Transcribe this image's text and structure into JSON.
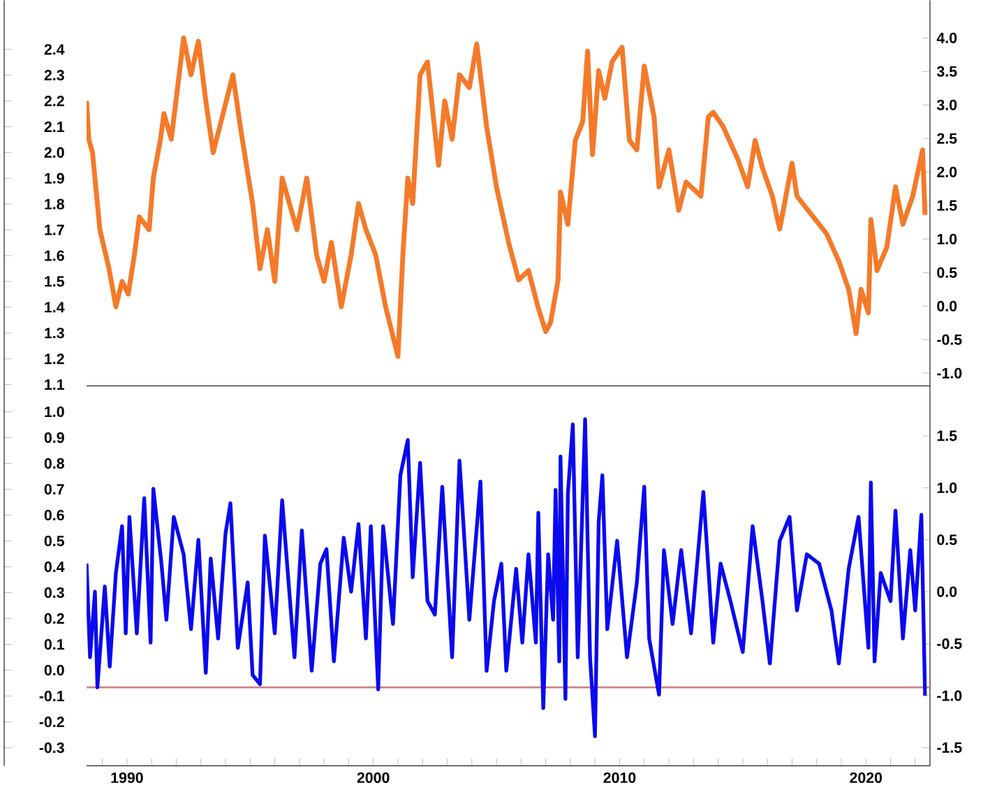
{
  "chart_data": [
    {
      "type": "line",
      "xlim": [
        1988.36,
        2022.6
      ],
      "tick_labels": "y",
      "ylim": [
        1.095,
        2.59
      ],
      "yticks": [
        1.1,
        1.2,
        1.3,
        1.4,
        1.5,
        1.6,
        1.7,
        1.8,
        1.9,
        {
          "value": 2,
          "label": "2.0"
        },
        2.1,
        2.2,
        2.3,
        2.4
      ],
      "y2lim": [
        -1.19,
        4.56
      ],
      "y2ticks": [
        {
          "value": -1,
          "label": "-1.0"
        },
        -0.5,
        {
          "value": 0,
          "label": "0.0"
        },
        0.5,
        {
          "value": 1,
          "label": "1.0"
        },
        1.5,
        {
          "value": 2,
          "label": "2.0"
        },
        2.5,
        {
          "value": 3,
          "label": "3.0"
        },
        3.5,
        {
          "value": 4,
          "label": "4.0"
        }
      ],
      "series": [
        {
          "axis": "y2",
          "color": "#f47a2a",
          "x": [
            1988.36,
            1988.45,
            1988.6,
            1988.9,
            1989.27,
            1989.55,
            1989.8,
            1990.05,
            1990.3,
            1990.5,
            1990.9,
            1991.07,
            1991.36,
            1991.5,
            1991.8,
            1992.3,
            1992.6,
            1992.9,
            1993.2,
            1993.5,
            1993.9,
            1994.3,
            1994.6,
            1995.1,
            1995.4,
            1995.7,
            1996.0,
            1996.3,
            1996.9,
            1997.3,
            1997.7,
            1998.0,
            1998.3,
            1998.7,
            1999.1,
            1999.4,
            1999.7,
            2000.1,
            2000.5,
            2001.0,
            2001.2,
            2001.4,
            2001.6,
            2001.9,
            2002.2,
            2002.65,
            2002.9,
            2003.2,
            2003.5,
            2003.9,
            2004.2,
            2004.6,
            2005.0,
            2005.5,
            2005.9,
            2006.3,
            2006.7,
            2007.0,
            2007.2,
            2007.5,
            2007.6,
            2007.9,
            2008.2,
            2008.5,
            2008.7,
            2008.9,
            2009.15,
            2009.4,
            2009.7,
            2010.1,
            2010.4,
            2010.7,
            2011.0,
            2011.4,
            2011.6,
            2012.0,
            2012.4,
            2012.7,
            2013.3,
            2013.6,
            2013.8,
            2014.2,
            2014.8,
            2015.2,
            2015.5,
            2015.8,
            2016.2,
            2016.5,
            2017.0,
            2017.2,
            2017.8,
            2018.4,
            2018.9,
            2019.3,
            2019.6,
            2019.8,
            2020.1,
            2020.2,
            2020.45,
            2020.85,
            2021.2,
            2021.5,
            2021.9,
            2022.3,
            2022.4
          ],
          "values": [
            3.06,
            2.49,
            2.29,
            1.14,
            0.56,
            -0.01,
            0.37,
            0.18,
            0.76,
            1.33,
            1.14,
            1.91,
            2.49,
            2.87,
            2.49,
            4.0,
            3.45,
            3.95,
            3.06,
            2.29,
            2.87,
            3.45,
            2.68,
            1.53,
            0.56,
            1.14,
            0.37,
            1.91,
            1.14,
            1.91,
            0.76,
            0.37,
            0.95,
            -0.01,
            0.76,
            1.53,
            1.14,
            0.76,
            -0.01,
            -0.75,
            0.76,
            1.91,
            1.53,
            3.45,
            3.64,
            2.1,
            3.06,
            2.49,
            3.45,
            3.26,
            3.91,
            2.68,
            1.78,
            0.94,
            0.39,
            0.53,
            -0.03,
            -0.38,
            -0.24,
            0.39,
            1.7,
            1.22,
            2.47,
            2.75,
            3.8,
            2.26,
            3.51,
            3.1,
            3.65,
            3.86,
            2.47,
            2.33,
            3.58,
            2.82,
            1.78,
            2.33,
            1.43,
            1.85,
            1.64,
            2.82,
            2.89,
            2.68,
            2.19,
            1.78,
            2.47,
            2.06,
            1.64,
            1.15,
            2.13,
            1.64,
            1.36,
            1.08,
            0.67,
            0.25,
            -0.41,
            0.25,
            -0.1,
            1.29,
            0.53,
            0.88,
            1.78,
            1.22,
            1.64,
            2.33,
            1.36
          ]
        }
      ]
    },
    {
      "type": "line",
      "xlim": [
        1988.36,
        2022.6
      ],
      "xticks": [
        {
          "value": 1989,
          "label": null
        },
        1990,
        {
          "value": 1991,
          "label": null
        },
        {
          "value": 1992,
          "label": null
        },
        {
          "value": 1993,
          "label": null
        },
        {
          "value": 1994,
          "label": null
        },
        {
          "value": 1995,
          "label": null
        },
        {
          "value": 1996,
          "label": null
        },
        {
          "value": 1997,
          "label": null
        },
        {
          "value": 1998,
          "label": null
        },
        {
          "value": 1999,
          "label": null
        },
        2000,
        {
          "value": 2001,
          "label": null
        },
        {
          "value": 2002,
          "label": null
        },
        {
          "value": 2003,
          "label": null
        },
        {
          "value": 2004,
          "label": null
        },
        {
          "value": 2005,
          "label": null
        },
        {
          "value": 2006,
          "label": null
        },
        {
          "value": 2007,
          "label": null
        },
        {
          "value": 2008,
          "label": null
        },
        {
          "value": 2009,
          "label": null
        },
        2010,
        {
          "value": 2011,
          "label": null
        },
        {
          "value": 2012,
          "label": null
        },
        {
          "value": 2013,
          "label": null
        },
        {
          "value": 2014,
          "label": null
        },
        {
          "value": 2015,
          "label": null
        },
        {
          "value": 2016,
          "label": null
        },
        {
          "value": 2017,
          "label": null
        },
        {
          "value": 2018,
          "label": null
        },
        {
          "value": 2019,
          "label": null
        },
        2020,
        {
          "value": 2021,
          "label": null
        },
        {
          "value": 2022,
          "label": null
        }
      ],
      "ylim": [
        -0.37,
        1.1
      ],
      "yticks": [
        -0.3,
        -0.2,
        -0.1,
        {
          "value": 0,
          "label": "0.0"
        },
        0.1,
        0.2,
        0.3,
        0.4,
        0.5,
        0.6,
        0.7,
        0.8,
        0.9,
        {
          "value": 1,
          "label": "1.0"
        }
      ],
      "y2lim": [
        -1.675,
        1.98
      ],
      "y2ticks": [
        -1.5,
        {
          "value": -1,
          "label": "-1.0"
        },
        -0.5,
        {
          "value": 0,
          "label": "0.0"
        },
        0.5,
        {
          "value": 1,
          "label": "1.0"
        },
        1.5
      ],
      "ref_lines": [
        {
          "axis": "y2",
          "value": -0.92,
          "color": "#d08080"
        }
      ],
      "series": [
        {
          "axis": "y2",
          "color": "#0a0aee",
          "x": [
            1988.36,
            1988.5,
            1988.7,
            1988.8,
            1989.1,
            1989.3,
            1989.55,
            1989.8,
            1989.95,
            1990.1,
            1990.4,
            1990.7,
            1990.96,
            1991.07,
            1991.4,
            1991.6,
            1991.9,
            1992.3,
            1992.6,
            1992.9,
            1993.2,
            1993.4,
            1993.7,
            1994.0,
            1994.2,
            1994.5,
            1994.9,
            1995.1,
            1995.4,
            1995.6,
            1996.0,
            1996.3,
            1996.5,
            1996.8,
            1997.1,
            1997.5,
            1997.85,
            1998.1,
            1998.4,
            1998.8,
            1999.1,
            1999.4,
            1999.7,
            1999.9,
            2000.2,
            2000.4,
            2000.8,
            2001.1,
            2001.4,
            2001.6,
            2001.9,
            2002.2,
            2002.5,
            2002.8,
            2003.2,
            2003.5,
            2003.9,
            2004.35,
            2004.6,
            2004.9,
            2005.2,
            2005.4,
            2005.8,
            2006.05,
            2006.3,
            2006.6,
            2006.7,
            2006.9,
            2007.1,
            2007.3,
            2007.4,
            2007.55,
            2007.6,
            2007.8,
            2007.9,
            2008.1,
            2008.3,
            2008.6,
            2008.8,
            2009.0,
            2009.15,
            2009.3,
            2009.5,
            2009.9,
            2010.3,
            2010.7,
            2011.0,
            2011.2,
            2011.6,
            2011.8,
            2012.15,
            2012.5,
            2012.9,
            2013.4,
            2013.8,
            2014.1,
            2014.5,
            2015.0,
            2015.4,
            2015.8,
            2016.1,
            2016.5,
            2016.9,
            2017.2,
            2017.6,
            2018.1,
            2018.6,
            2018.9,
            2019.3,
            2019.7,
            2020.1,
            2020.2,
            2020.35,
            2020.6,
            2021.0,
            2021.2,
            2021.5,
            2021.8,
            2022.0,
            2022.25,
            2022.4
          ],
          "values": [
            0.27,
            -0.63,
            0.0,
            -0.92,
            0.05,
            -0.72,
            0.18,
            0.63,
            -0.4,
            0.72,
            -0.4,
            0.9,
            -0.49,
            0.99,
            0.27,
            -0.27,
            0.72,
            0.36,
            -0.36,
            0.5,
            -0.78,
            0.32,
            -0.45,
            0.56,
            0.85,
            -0.54,
            0.09,
            -0.8,
            -0.89,
            0.54,
            -0.4,
            0.88,
            0.27,
            -0.63,
            0.59,
            -0.76,
            0.27,
            0.41,
            -0.67,
            0.52,
            0.0,
            0.65,
            -0.45,
            0.63,
            -0.94,
            0.63,
            -0.31,
            1.12,
            1.46,
            0.14,
            1.24,
            -0.09,
            -0.22,
            1.01,
            -0.63,
            1.26,
            -0.27,
            1.06,
            -0.76,
            -0.09,
            0.27,
            -0.76,
            0.22,
            -0.49,
            0.36,
            -0.49,
            0.76,
            -1.12,
            0.36,
            -0.27,
            0.98,
            -0.67,
            1.3,
            -1.03,
            0.94,
            1.61,
            -0.63,
            1.66,
            -0.63,
            -1.39,
            0.67,
            1.12,
            -0.36,
            0.49,
            -0.63,
            0.09,
            1.01,
            -0.45,
            -0.99,
            0.4,
            -0.31,
            0.4,
            -0.4,
            0.96,
            -0.49,
            0.27,
            -0.09,
            -0.58,
            0.63,
            -0.09,
            -0.69,
            0.49,
            0.72,
            -0.18,
            0.36,
            0.27,
            -0.18,
            -0.69,
            0.22,
            0.72,
            -0.54,
            1.05,
            -0.67,
            0.18,
            -0.09,
            0.78,
            -0.45,
            0.4,
            -0.18,
            0.74,
            -1.0
          ]
        }
      ]
    }
  ]
}
